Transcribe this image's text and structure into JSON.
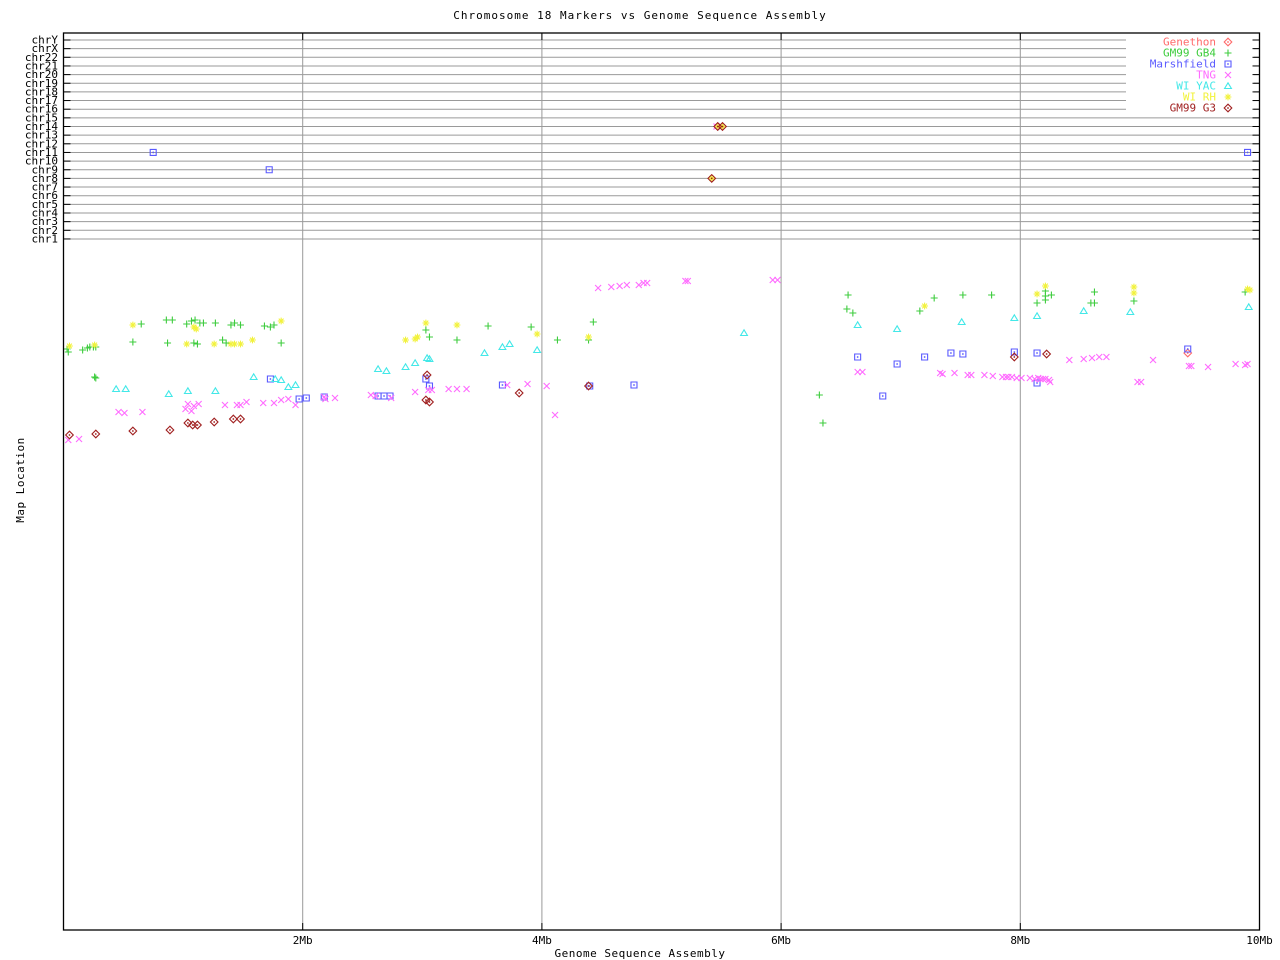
{
  "title": "Chromosome 18 Markers vs Genome Sequence Assembly",
  "axes": {
    "x_label": "Genome Sequence Assembly",
    "y_label": "Map Location",
    "x_ticks": [
      {
        "label": "2Mb",
        "mb": 2,
        "grid": true
      },
      {
        "label": "4Mb",
        "mb": 4,
        "grid": true
      },
      {
        "label": "6Mb",
        "mb": 6,
        "grid": true
      },
      {
        "label": "8Mb",
        "mb": 8,
        "grid": true
      },
      {
        "label": "10Mb",
        "mb": 10,
        "grid": false
      }
    ],
    "chromosomes": [
      "chrY",
      "chrX",
      "chr22",
      "chr21",
      "chr20",
      "chr19",
      "chr18",
      "chr17",
      "chr16",
      "chr15",
      "chr14",
      "chr13",
      "chr12",
      "chr11",
      "chr10",
      "chr9",
      "chr8",
      "chr7",
      "chr6",
      "chr5",
      "chr4",
      "chr3",
      "chr2",
      "chr1"
    ]
  },
  "colors": {
    "grid": "#9a9a9a",
    "frame": "#000000"
  },
  "chart_data": {
    "type": "scatter",
    "x_units": "Mb",
    "x_range": [
      0,
      10
    ],
    "y_note": "lower band = map location (unlabeled axis, values given as screen y-px 260-445); chrom_points = markers plotted on chromosome rows",
    "series": [
      {
        "name": "Genethon",
        "marker": "diamond-dot",
        "color": "#ff6a6a",
        "points": [
          [
            9.4,
            353
          ]
        ],
        "chrom_points": []
      },
      {
        "name": "GM99 GB4",
        "marker": "plus",
        "color": "#3ecc3e",
        "points": [
          [
            0.03,
            349
          ],
          [
            0.04,
            352
          ],
          [
            0.16,
            350
          ],
          [
            0.2,
            348
          ],
          [
            0.22,
            347
          ],
          [
            0.25,
            347
          ],
          [
            0.27,
            347
          ],
          [
            0.26,
            377
          ],
          [
            0.27,
            378
          ],
          [
            0.58,
            342
          ],
          [
            0.65,
            324
          ],
          [
            0.86,
            320
          ],
          [
            0.87,
            343
          ],
          [
            0.91,
            320
          ],
          [
            1.03,
            324
          ],
          [
            1.07,
            321
          ],
          [
            1.09,
            343
          ],
          [
            1.1,
            320
          ],
          [
            1.12,
            344
          ],
          [
            1.14,
            323
          ],
          [
            1.17,
            323
          ],
          [
            1.27,
            323
          ],
          [
            1.33,
            340
          ],
          [
            1.36,
            343
          ],
          [
            1.4,
            325
          ],
          [
            1.43,
            323
          ],
          [
            1.48,
            325
          ],
          [
            1.68,
            326
          ],
          [
            1.73,
            327
          ],
          [
            1.76,
            325
          ],
          [
            1.82,
            343
          ],
          [
            3.03,
            330
          ],
          [
            3.06,
            337
          ],
          [
            3.29,
            340
          ],
          [
            3.55,
            326
          ],
          [
            3.91,
            327
          ],
          [
            4.13,
            340
          ],
          [
            4.39,
            340
          ],
          [
            4.43,
            322
          ],
          [
            6.32,
            395
          ],
          [
            6.35,
            423
          ],
          [
            6.55,
            309
          ],
          [
            6.56,
            295
          ],
          [
            6.6,
            313
          ],
          [
            7.16,
            311
          ],
          [
            7.28,
            298
          ],
          [
            7.52,
            295
          ],
          [
            7.76,
            295
          ],
          [
            8.14,
            303
          ],
          [
            8.21,
            291
          ],
          [
            8.21,
            296
          ],
          [
            8.21,
            300
          ],
          [
            8.26,
            295
          ],
          [
            8.59,
            303
          ],
          [
            8.62,
            292
          ],
          [
            8.62,
            303
          ],
          [
            8.95,
            301
          ],
          [
            9.88,
            292
          ]
        ],
        "chrom_points": []
      },
      {
        "name": "Marshfield",
        "marker": "square-dot",
        "color": "#5a5aff",
        "points": [
          [
            1.73,
            379
          ],
          [
            1.97,
            399
          ],
          [
            2.03,
            398
          ],
          [
            2.18,
            397
          ],
          [
            2.63,
            396
          ],
          [
            2.68,
            396
          ],
          [
            2.73,
            396
          ],
          [
            3.03,
            379
          ],
          [
            3.06,
            386
          ],
          [
            3.67,
            385
          ],
          [
            4.4,
            386
          ],
          [
            4.77,
            385
          ],
          [
            6.64,
            357
          ],
          [
            6.85,
            396
          ],
          [
            6.97,
            364
          ],
          [
            7.2,
            357
          ],
          [
            7.42,
            353
          ],
          [
            7.52,
            354
          ],
          [
            7.95,
            352
          ],
          [
            8.14,
            353
          ],
          [
            8.14,
            383
          ],
          [
            9.4,
            349
          ]
        ],
        "chrom_points": [
          [
            0.75,
            "chr11"
          ],
          [
            1.72,
            "chr9"
          ],
          [
            9.9,
            "chr11"
          ]
        ]
      },
      {
        "name": "TNG",
        "marker": "cross",
        "color": "#ff6aff",
        "points": [
          [
            0.04,
            440
          ],
          [
            0.13,
            439
          ],
          [
            0.46,
            412
          ],
          [
            0.51,
            413
          ],
          [
            0.66,
            412
          ],
          [
            1.02,
            409
          ],
          [
            1.04,
            404
          ],
          [
            1.07,
            411
          ],
          [
            1.09,
            406
          ],
          [
            1.13,
            404
          ],
          [
            1.35,
            405
          ],
          [
            1.45,
            405
          ],
          [
            1.48,
            405
          ],
          [
            1.53,
            402
          ],
          [
            1.67,
            403
          ],
          [
            1.76,
            403
          ],
          [
            1.82,
            400
          ],
          [
            1.88,
            399
          ],
          [
            1.94,
            405
          ],
          [
            2.18,
            397
          ],
          [
            2.19,
            399
          ],
          [
            2.27,
            398
          ],
          [
            2.57,
            395
          ],
          [
            2.61,
            396
          ],
          [
            2.74,
            398
          ],
          [
            2.94,
            392
          ],
          [
            3.05,
            390
          ],
          [
            3.08,
            390
          ],
          [
            3.22,
            389
          ],
          [
            3.29,
            389
          ],
          [
            3.37,
            389
          ],
          [
            3.71,
            385
          ],
          [
            3.88,
            384
          ],
          [
            4.04,
            386
          ],
          [
            4.11,
            415
          ],
          [
            4.47,
            288
          ],
          [
            4.58,
            287
          ],
          [
            4.65,
            286
          ],
          [
            4.71,
            285
          ],
          [
            4.81,
            285
          ],
          [
            4.85,
            283
          ],
          [
            4.88,
            283
          ],
          [
            5.2,
            281
          ],
          [
            5.22,
            281
          ],
          [
            5.93,
            280
          ],
          [
            5.97,
            280
          ],
          [
            6.64,
            372
          ],
          [
            6.68,
            372
          ],
          [
            7.33,
            373
          ],
          [
            7.35,
            374
          ],
          [
            7.45,
            373
          ],
          [
            7.56,
            375
          ],
          [
            7.59,
            375
          ],
          [
            7.7,
            375
          ],
          [
            7.77,
            376
          ],
          [
            7.85,
            377
          ],
          [
            7.88,
            377
          ],
          [
            7.9,
            377
          ],
          [
            7.93,
            377
          ],
          [
            7.97,
            378
          ],
          [
            8.01,
            378
          ],
          [
            8.08,
            378
          ],
          [
            8.12,
            379
          ],
          [
            8.15,
            378
          ],
          [
            8.17,
            379
          ],
          [
            8.19,
            379
          ],
          [
            8.21,
            379
          ],
          [
            8.24,
            380
          ],
          [
            8.25,
            382
          ],
          [
            8.41,
            360
          ],
          [
            8.53,
            359
          ],
          [
            8.6,
            358
          ],
          [
            8.66,
            357
          ],
          [
            8.72,
            357
          ],
          [
            8.98,
            382
          ],
          [
            9.01,
            382
          ],
          [
            9.11,
            360
          ],
          [
            9.41,
            366
          ],
          [
            9.43,
            366
          ],
          [
            9.57,
            367
          ],
          [
            9.8,
            364
          ],
          [
            9.88,
            365
          ],
          [
            9.9,
            364
          ]
        ],
        "chrom_points": [
          [
            5.46,
            "chr14"
          ]
        ]
      },
      {
        "name": "WI YAC",
        "marker": "triangle",
        "color": "#43e8e8",
        "points": [
          [
            0.44,
            389
          ],
          [
            0.52,
            389
          ],
          [
            0.88,
            394
          ],
          [
            1.04,
            391
          ],
          [
            1.27,
            391
          ],
          [
            1.59,
            377
          ],
          [
            1.77,
            379
          ],
          [
            1.82,
            380
          ],
          [
            1.88,
            387
          ],
          [
            1.94,
            385
          ],
          [
            2.63,
            369
          ],
          [
            2.7,
            371
          ],
          [
            2.86,
            367
          ],
          [
            2.94,
            363
          ],
          [
            3.04,
            358
          ],
          [
            3.06,
            359
          ],
          [
            3.52,
            353
          ],
          [
            3.67,
            347
          ],
          [
            3.73,
            344
          ],
          [
            3.96,
            350
          ],
          [
            5.69,
            333
          ],
          [
            6.64,
            325
          ],
          [
            6.97,
            329
          ],
          [
            7.51,
            322
          ],
          [
            7.95,
            318
          ],
          [
            8.14,
            316
          ],
          [
            8.53,
            311
          ],
          [
            8.92,
            312
          ],
          [
            9.91,
            307
          ]
        ],
        "chrom_points": []
      },
      {
        "name": "WI RH",
        "marker": "asterisk",
        "color": "#f2f23c",
        "points": [
          [
            0.05,
            346
          ],
          [
            0.26,
            345
          ],
          [
            0.58,
            325
          ],
          [
            1.03,
            344
          ],
          [
            1.09,
            327
          ],
          [
            1.11,
            329
          ],
          [
            1.26,
            344
          ],
          [
            1.4,
            344
          ],
          [
            1.43,
            344
          ],
          [
            1.48,
            344
          ],
          [
            1.58,
            340
          ],
          [
            1.82,
            321
          ],
          [
            2.86,
            340
          ],
          [
            2.94,
            339
          ],
          [
            2.96,
            337
          ],
          [
            3.03,
            323
          ],
          [
            3.29,
            325
          ],
          [
            3.96,
            334
          ],
          [
            4.39,
            337
          ],
          [
            7.2,
            306
          ],
          [
            8.14,
            294
          ],
          [
            8.21,
            286
          ],
          [
            8.95,
            287
          ],
          [
            8.95,
            293
          ],
          [
            9.9,
            289
          ],
          [
            9.92,
            290
          ]
        ],
        "chrom_points": [
          [
            5.47,
            "chr14"
          ],
          [
            5.51,
            "chr14"
          ],
          [
            5.42,
            "chr8"
          ]
        ]
      },
      {
        "name": "GM99 G3",
        "marker": "diamond-dot",
        "color": "#a02020",
        "points": [
          [
            0.05,
            435
          ],
          [
            0.27,
            434
          ],
          [
            0.58,
            431
          ],
          [
            0.89,
            430
          ],
          [
            1.04,
            423
          ],
          [
            1.08,
            425
          ],
          [
            1.12,
            425
          ],
          [
            1.26,
            422
          ],
          [
            1.42,
            419
          ],
          [
            1.48,
            419
          ],
          [
            3.03,
            400
          ],
          [
            3.04,
            375
          ],
          [
            3.06,
            402
          ],
          [
            3.81,
            393
          ],
          [
            4.39,
            386
          ],
          [
            7.95,
            357
          ],
          [
            8.22,
            354
          ]
        ],
        "chrom_points": [
          [
            5.47,
            "chr14"
          ],
          [
            5.51,
            "chr14"
          ],
          [
            5.42,
            "chr8"
          ]
        ]
      }
    ]
  }
}
